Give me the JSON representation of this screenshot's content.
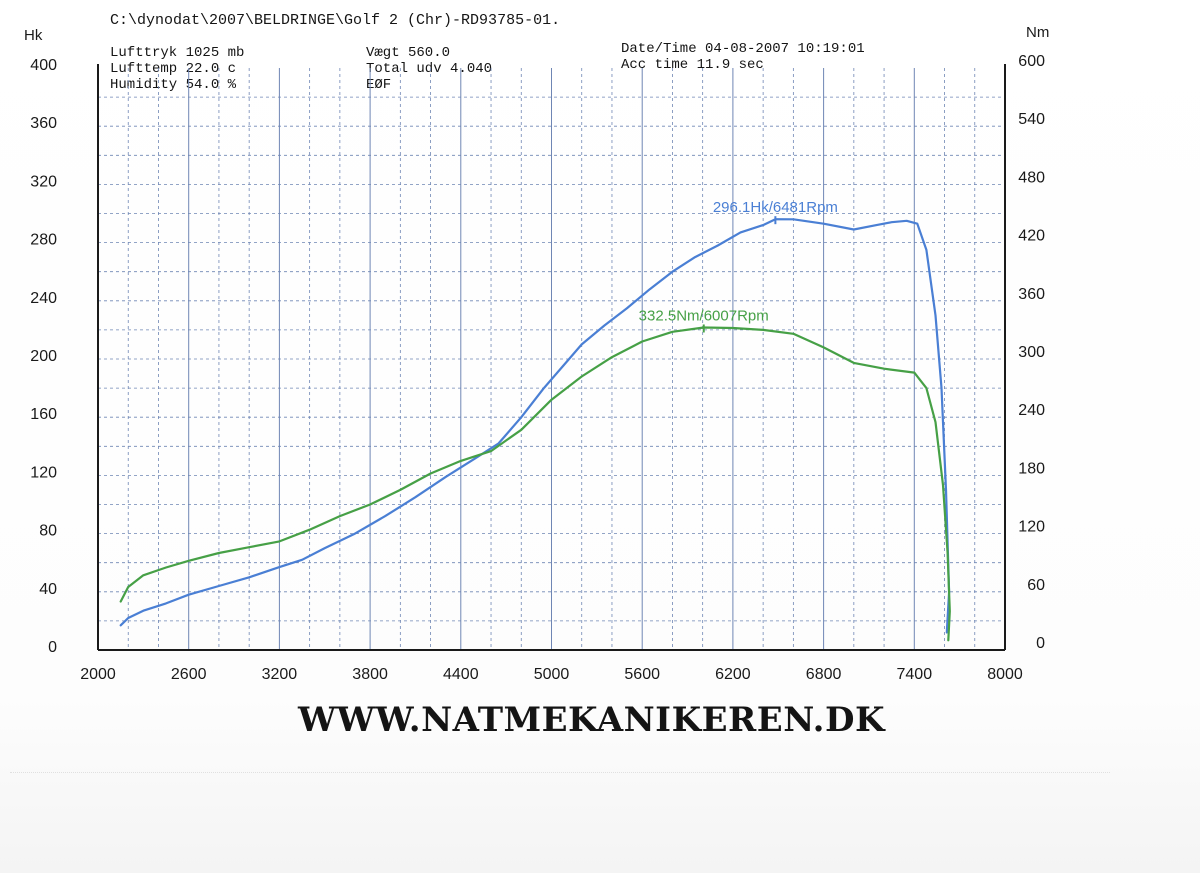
{
  "header": {
    "file_path": "C:\\dynodat\\2007\\BELDRINGE\\Golf 2 (Chr)-RD93785-01.",
    "lufttryk": "Lufttryk  1025 mb",
    "lufttemp": "Lufttemp  22.0 c",
    "humidity": "Humidity  54.0 %",
    "vaegt": "Vægt      560.0",
    "total_udv": "Total udv 4.040",
    "eof": "EØF",
    "datetime": "Date/Time  04-08-2007 10:19:01",
    "acc_time": "Acc time  11.9 sec"
  },
  "footer": {
    "website": "WWW.NATMEKANIKEREN.DK"
  },
  "chart_data": {
    "type": "line",
    "title": "",
    "xlabel": "",
    "ylabel_left": "Hk",
    "ylabel_right": "Nm",
    "x_ticks": [
      "2000",
      "2600",
      "3200",
      "3800",
      "4400",
      "5000",
      "5600",
      "6200",
      "6800",
      "7400",
      "8000"
    ],
    "y_left_ticks": [
      "0",
      "40",
      "80",
      "120",
      "160",
      "200",
      "240",
      "280",
      "320",
      "360",
      "400"
    ],
    "y_right_ticks": [
      "0",
      "60",
      "120",
      "180",
      "240",
      "300",
      "360",
      "420",
      "480",
      "540",
      "600"
    ],
    "xlim": [
      2000,
      8000
    ],
    "ylim_left": [
      0,
      400
    ],
    "ylim_right": [
      0,
      600
    ],
    "grid": true,
    "colors": {
      "power": "#4a7fd4",
      "torque": "#46a046",
      "grid": "#6f86b4"
    },
    "series": [
      {
        "key": "power",
        "axis": "left",
        "points": [
          [
            2150,
            17
          ],
          [
            2200,
            22
          ],
          [
            2300,
            27
          ],
          [
            2450,
            32
          ],
          [
            2600,
            38
          ],
          [
            2800,
            44
          ],
          [
            3000,
            50
          ],
          [
            3200,
            57
          ],
          [
            3350,
            62
          ],
          [
            3500,
            70
          ],
          [
            3700,
            80
          ],
          [
            3900,
            92
          ],
          [
            4100,
            105
          ],
          [
            4300,
            119
          ],
          [
            4500,
            132
          ],
          [
            4650,
            142
          ],
          [
            4800,
            160
          ],
          [
            4950,
            180
          ],
          [
            5100,
            198
          ],
          [
            5200,
            210
          ],
          [
            5350,
            223
          ],
          [
            5500,
            235
          ],
          [
            5650,
            248
          ],
          [
            5800,
            260
          ],
          [
            5950,
            270
          ],
          [
            6100,
            278
          ],
          [
            6250,
            287
          ],
          [
            6400,
            292
          ],
          [
            6481,
            296.1
          ],
          [
            6600,
            296
          ],
          [
            6800,
            293
          ],
          [
            7000,
            289
          ],
          [
            7150,
            292
          ],
          [
            7250,
            294
          ],
          [
            7350,
            295
          ],
          [
            7420,
            293
          ],
          [
            7480,
            275
          ],
          [
            7540,
            230
          ],
          [
            7580,
            180
          ],
          [
            7610,
            110
          ],
          [
            7630,
            40
          ],
          [
            7615,
            12
          ]
        ]
      },
      {
        "key": "torque",
        "axis": "right",
        "points": [
          [
            2150,
            50
          ],
          [
            2200,
            65
          ],
          [
            2300,
            77
          ],
          [
            2450,
            85
          ],
          [
            2600,
            92
          ],
          [
            2800,
            100
          ],
          [
            3000,
            106
          ],
          [
            3200,
            112
          ],
          [
            3400,
            124
          ],
          [
            3600,
            138
          ],
          [
            3800,
            150
          ],
          [
            4000,
            165
          ],
          [
            4200,
            182
          ],
          [
            4400,
            195
          ],
          [
            4600,
            205
          ],
          [
            4800,
            227
          ],
          [
            5000,
            258
          ],
          [
            5200,
            282
          ],
          [
            5400,
            302
          ],
          [
            5600,
            318
          ],
          [
            5800,
            328
          ],
          [
            6007,
            332.5
          ],
          [
            6200,
            332
          ],
          [
            6400,
            330
          ],
          [
            6600,
            326
          ],
          [
            6800,
            312
          ],
          [
            7000,
            296
          ],
          [
            7200,
            290
          ],
          [
            7400,
            286
          ],
          [
            7480,
            270
          ],
          [
            7540,
            235
          ],
          [
            7590,
            170
          ],
          [
            7620,
            100
          ],
          [
            7635,
            40
          ],
          [
            7625,
            10
          ]
        ]
      }
    ],
    "annotations": [
      {
        "series": "power",
        "text": "296.1Hk/6481Rpm",
        "x": 6481,
        "y": 296.1
      },
      {
        "series": "torque",
        "text": "332.5Nm/6007Rpm",
        "x": 6007,
        "y": 332.5
      }
    ]
  }
}
